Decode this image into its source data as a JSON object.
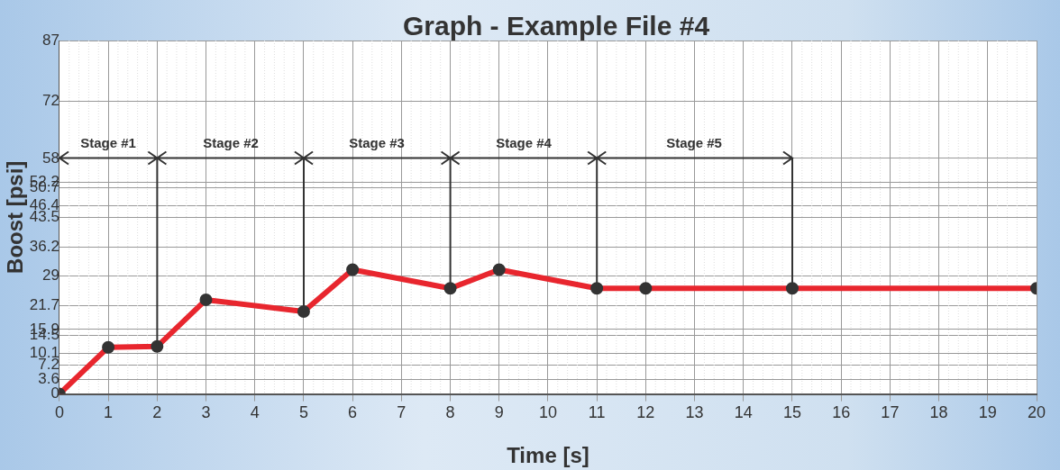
{
  "chart_data": {
    "type": "line",
    "title": "Graph - Example File #4",
    "xlabel": "Time [s]",
    "ylabel": "Boost [psi]",
    "x": [
      0,
      1,
      2,
      3,
      5,
      6,
      8,
      9,
      11,
      12,
      15,
      20
    ],
    "series": [
      {
        "color": "#e8262e",
        "values": [
          0,
          11.5,
          11.7,
          23.2,
          20.3,
          30.6,
          26,
          30.6,
          26,
          26,
          26,
          26
        ]
      }
    ],
    "xlim": [
      0,
      20
    ],
    "xticks": [
      0,
      1,
      2,
      3,
      4,
      5,
      6,
      7,
      8,
      9,
      10,
      11,
      12,
      13,
      14,
      15,
      16,
      17,
      18,
      19,
      20
    ],
    "ylim": [
      0,
      87
    ],
    "yticks": [
      0,
      3.6,
      7.2,
      10.1,
      14.5,
      15.9,
      21.7,
      29,
      36.2,
      43.5,
      46.4,
      50.7,
      52.2,
      58,
      72,
      87
    ],
    "grid": true,
    "legend": false,
    "marker": "circle",
    "line_style": "solid",
    "annotations": [
      "Stage #1",
      "Stage #2",
      "Stage #3",
      "Stage #4",
      "Stage #5"
    ]
  }
}
